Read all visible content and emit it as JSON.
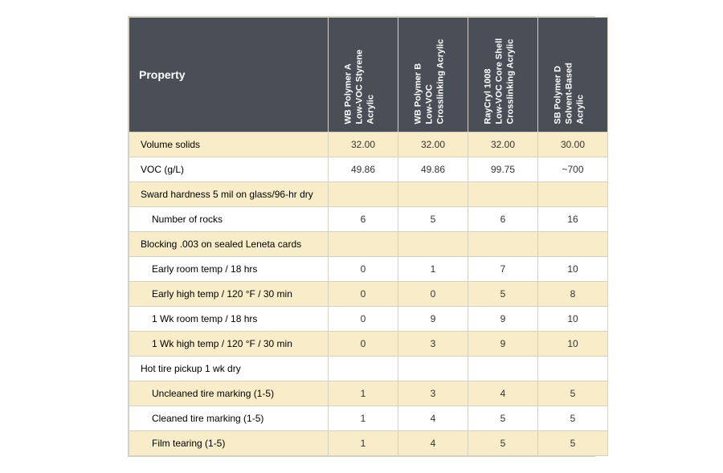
{
  "table": {
    "header_bg": "#4a4f57",
    "header_fg": "#ffffff",
    "band_a_bg": "#f8edc8",
    "band_b_bg": "#ffffff",
    "border_color": "#d4d0c4",
    "property_header": "Property",
    "columns": [
      {
        "l1": "WB Polymer A",
        "l2": "Low-VOC Styrene",
        "l3": "Acrylic"
      },
      {
        "l1": "WB Polymer B",
        "l2": "Low-VOC",
        "l3": "Crosslinking Acrylic"
      },
      {
        "l1": "RayCryl 1008",
        "l2": "Low-VOC Core Shell",
        "l3": "Crosslinking Acrylic"
      },
      {
        "l1": "SB Polymer D",
        "l2": "Solvent-Based",
        "l3": "Acrylic"
      }
    ],
    "rows": [
      {
        "band": "a",
        "indent": 0,
        "label": "Volume solids",
        "vals": [
          "32.00",
          "32.00",
          "32.00",
          "30.00"
        ]
      },
      {
        "band": "b",
        "indent": 0,
        "label": "VOC (g/L)",
        "vals": [
          "49.86",
          "49.86",
          "99.75",
          "~700"
        ]
      },
      {
        "band": "a",
        "indent": 0,
        "label": "Sward hardness 5 mil on glass/96-hr dry",
        "vals": [
          "",
          "",
          "",
          ""
        ]
      },
      {
        "band": "b",
        "indent": 1,
        "label": "Number of rocks",
        "vals": [
          "6",
          "5",
          "6",
          "16"
        ]
      },
      {
        "band": "a",
        "indent": 0,
        "label": "Blocking .003 on sealed Leneta cards",
        "vals": [
          "",
          "",
          "",
          ""
        ]
      },
      {
        "band": "b",
        "indent": 1,
        "label": "Early room temp / 18 hrs",
        "vals": [
          "0",
          "1",
          "7",
          "10"
        ]
      },
      {
        "band": "a",
        "indent": 1,
        "label": "Early high temp / 120 °F / 30 min",
        "vals": [
          "0",
          "0",
          "5",
          "8"
        ]
      },
      {
        "band": "b",
        "indent": 1,
        "label": "1 Wk room temp / 18 hrs",
        "vals": [
          "0",
          "9",
          "9",
          "10"
        ]
      },
      {
        "band": "a",
        "indent": 1,
        "label": "1 Wk high temp / 120 °F / 30 min",
        "vals": [
          "0",
          "3",
          "9",
          "10"
        ]
      },
      {
        "band": "b",
        "indent": 0,
        "label": "Hot tire pickup 1 wk dry",
        "vals": [
          "",
          "",
          "",
          ""
        ]
      },
      {
        "band": "a",
        "indent": 1,
        "label": "Uncleaned tire marking (1-5)",
        "vals": [
          "1",
          "3",
          "4",
          "5"
        ]
      },
      {
        "band": "b",
        "indent": 1,
        "label": "Cleaned tire marking (1-5)",
        "vals": [
          "1",
          "4",
          "5",
          "5"
        ]
      },
      {
        "band": "a",
        "indent": 1,
        "label": "Film tearing (1-5)",
        "vals": [
          "1",
          "4",
          "5",
          "5"
        ]
      }
    ]
  }
}
